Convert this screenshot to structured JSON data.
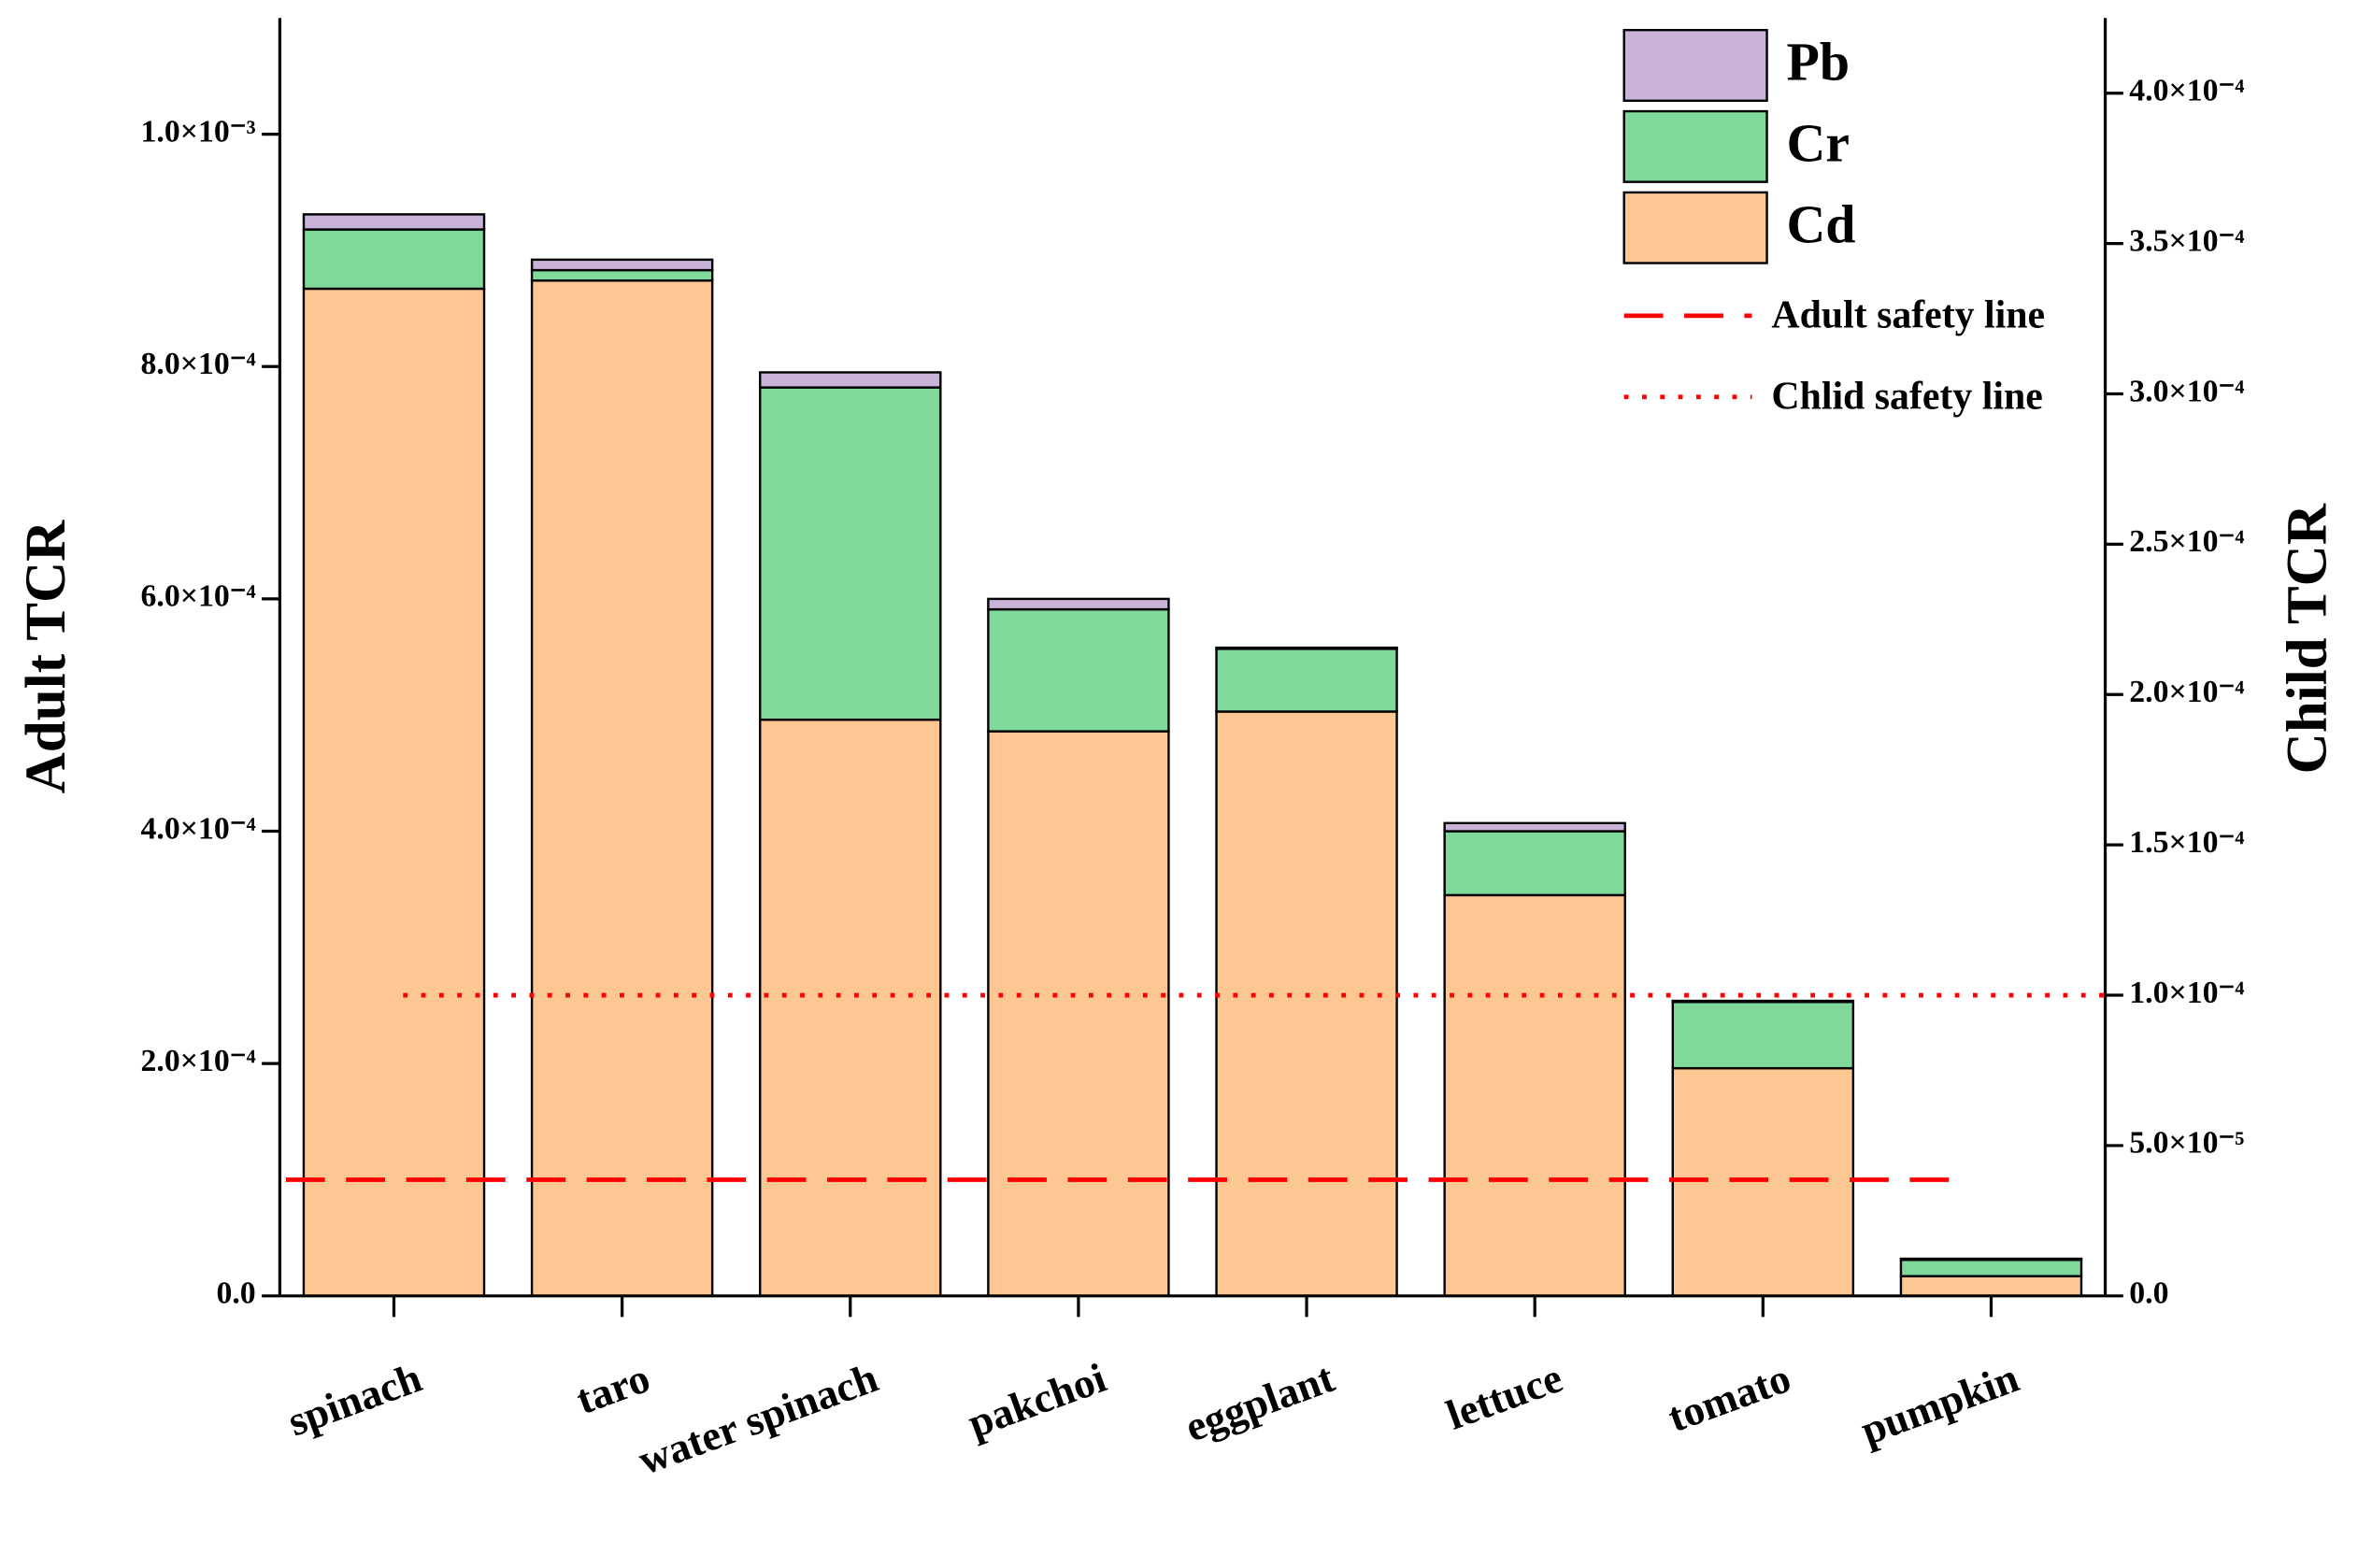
{
  "chart_data": {
    "type": "stacked_bar",
    "y_label": "Adult TCR",
    "y2_label": "Child TCR",
    "categories": [
      "spinach",
      "taro",
      "water spinach",
      "pakchoi",
      "eggplant",
      "lettuce",
      "tomato",
      "pumpkin"
    ],
    "series": [
      {
        "name": "Cd",
        "color": "#fdc794",
        "values": [
          0.000867,
          0.000874,
          0.000496,
          0.000486,
          0.000503,
          0.000345,
          0.000196,
          1.7e-05
        ]
      },
      {
        "name": "Cr",
        "color": "#7fd99a",
        "values": [
          5.1e-05,
          9e-06,
          0.000286,
          0.000105,
          5.4e-05,
          5.5e-05,
          5.7e-05,
          1.4e-05
        ]
      },
      {
        "name": "Pb",
        "color": "#c9b3d9",
        "values": [
          1.3e-05,
          9e-06,
          1.3e-05,
          9e-06,
          1e-06,
          7e-06,
          1e-06,
          1e-06
        ]
      }
    ],
    "reference_lines": [
      {
        "name": "Adult safety line",
        "value": 0.0001,
        "axis": "y",
        "color": "#ff0000",
        "style": "dashed"
      },
      {
        "name": "Chlid safety line",
        "value": 0.0001,
        "axis": "y2",
        "color": "#ff0000",
        "style": "dotted"
      }
    ],
    "ylim": [
      0,
      0.0011
    ],
    "yticks": [
      {
        "value": 0,
        "label": "0.0"
      },
      {
        "value": 0.0002,
        "label": "2.0×10⁻⁴"
      },
      {
        "value": 0.0004,
        "label": "4.0×10⁻⁴"
      },
      {
        "value": 0.0006,
        "label": "6.0×10⁻⁴"
      },
      {
        "value": 0.0008,
        "label": "8.0×10⁻⁴"
      },
      {
        "value": 0.001,
        "label": "1.0×10⁻³"
      }
    ],
    "y2lim": [
      0,
      0.000425
    ],
    "y2ticks": [
      {
        "value": 0,
        "label": "0.0"
      },
      {
        "value": 5e-05,
        "label": "5.0×10⁻⁵"
      },
      {
        "value": 0.0001,
        "label": "1.0×10⁻⁴"
      },
      {
        "value": 0.00015,
        "label": "1.5×10⁻⁴"
      },
      {
        "value": 0.0002,
        "label": "2.0×10⁻⁴"
      },
      {
        "value": 0.00025,
        "label": "2.5×10⁻⁴"
      },
      {
        "value": 0.0003,
        "label": "3.0×10⁻⁴"
      },
      {
        "value": 0.00035,
        "label": "3.5×10⁻⁴"
      },
      {
        "value": 0.0004,
        "label": "4.0×10⁻⁴"
      }
    ],
    "legend": "upper right"
  }
}
